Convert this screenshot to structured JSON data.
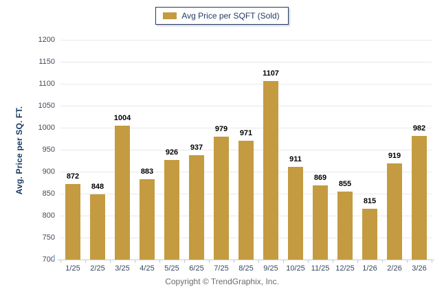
{
  "legend": {
    "label": "Avg Price per SQFT (Sold)",
    "swatch_color": "#c49b40",
    "border_color": "#1f3a63"
  },
  "chart_data": {
    "type": "bar",
    "title": "",
    "categories": [
      "1/25",
      "2/25",
      "3/25",
      "4/25",
      "5/25",
      "6/25",
      "7/25",
      "8/25",
      "9/25",
      "10/25",
      "11/25",
      "12/25",
      "1/26",
      "2/26",
      "3/26"
    ],
    "values": [
      872,
      848,
      1004,
      883,
      926,
      937,
      979,
      971,
      1107,
      911,
      869,
      855,
      815,
      919,
      982
    ],
    "xlabel": "",
    "ylabel": "Avg. Price per SQ. FT.",
    "ylim": [
      700,
      1200
    ],
    "yticks": [
      1200,
      1150,
      1100,
      1050,
      1000,
      950,
      900,
      850,
      800,
      750,
      700
    ],
    "grid": true,
    "legend_position": "top-center",
    "legend_label": "Avg Price per SQFT (Sold)",
    "bar_color": "#c49b40",
    "value_labels_shown": true
  },
  "footer": {
    "copyright": "Copyright © TrendGraphix, Inc."
  }
}
